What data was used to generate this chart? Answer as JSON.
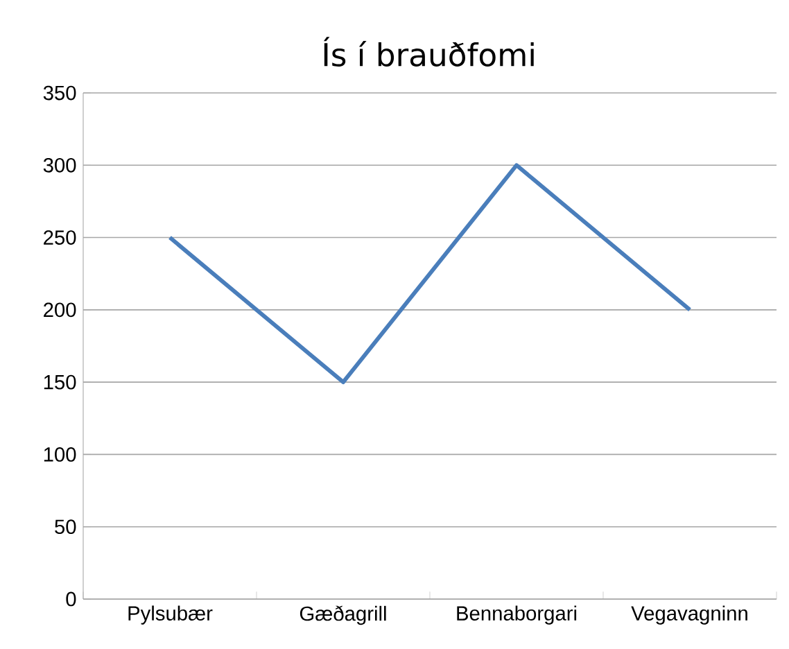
{
  "chart_data": {
    "type": "line",
    "title": "Ís í brauðfomi",
    "categories": [
      "Pylsubær",
      "Gæðagrill",
      "Bennaborgari",
      "Vegavagninn"
    ],
    "values": [
      250,
      150,
      300,
      200
    ],
    "color": "#4a7ebb",
    "ylim": [
      0,
      350
    ],
    "yticks": [
      0,
      50,
      100,
      150,
      200,
      250,
      300,
      350
    ],
    "grid": "y"
  }
}
